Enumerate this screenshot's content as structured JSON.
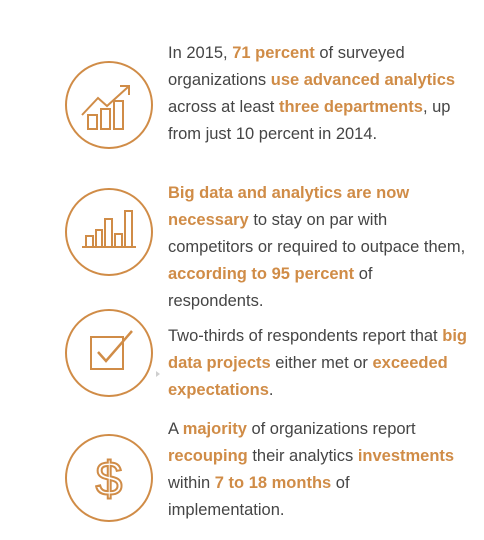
{
  "colors": {
    "accent": "#d08c47",
    "text": "#454545"
  },
  "stats": [
    {
      "icon": "growth-bar-chart-icon",
      "segments": [
        {
          "text": "In 2015, ",
          "hl": false
        },
        {
          "text": "71 percent",
          "hl": true
        },
        {
          "text": " of surveyed organizations ",
          "hl": false
        },
        {
          "text": "use advanced analytics",
          "hl": true
        },
        {
          "text": " across at least ",
          "hl": false
        },
        {
          "text": "three departments",
          "hl": true
        },
        {
          "text": ", up from just 10 percent in 2014.",
          "hl": false
        }
      ]
    },
    {
      "icon": "bar-chart-icon",
      "segments": [
        {
          "text": "Big data and analytics are now necessary",
          "hl": true
        },
        {
          "text": " to stay on par with competitors or required to outpace them, ",
          "hl": false
        },
        {
          "text": "according to 95 percent",
          "hl": true
        },
        {
          "text": " of respondents.",
          "hl": false
        }
      ]
    },
    {
      "icon": "checkbox-icon",
      "segments": [
        {
          "text": "Two-thirds of respondents report that ",
          "hl": false
        },
        {
          "text": "big data projects",
          "hl": true
        },
        {
          "text": " either met or ",
          "hl": false
        },
        {
          "text": "exceeded expectations",
          "hl": true
        },
        {
          "text": ".",
          "hl": false
        }
      ]
    },
    {
      "icon": "dollar-icon",
      "segments": [
        {
          "text": "A ",
          "hl": false
        },
        {
          "text": "majority",
          "hl": true
        },
        {
          "text": " of organizations report ",
          "hl": false
        },
        {
          "text": "recouping",
          "hl": true
        },
        {
          "text": " their analytics ",
          "hl": false
        },
        {
          "text": "investments",
          "hl": true
        },
        {
          "text": " within ",
          "hl": false
        },
        {
          "text": "7 to 18 months",
          "hl": true
        },
        {
          "text": " of implementation.",
          "hl": false
        }
      ]
    }
  ]
}
